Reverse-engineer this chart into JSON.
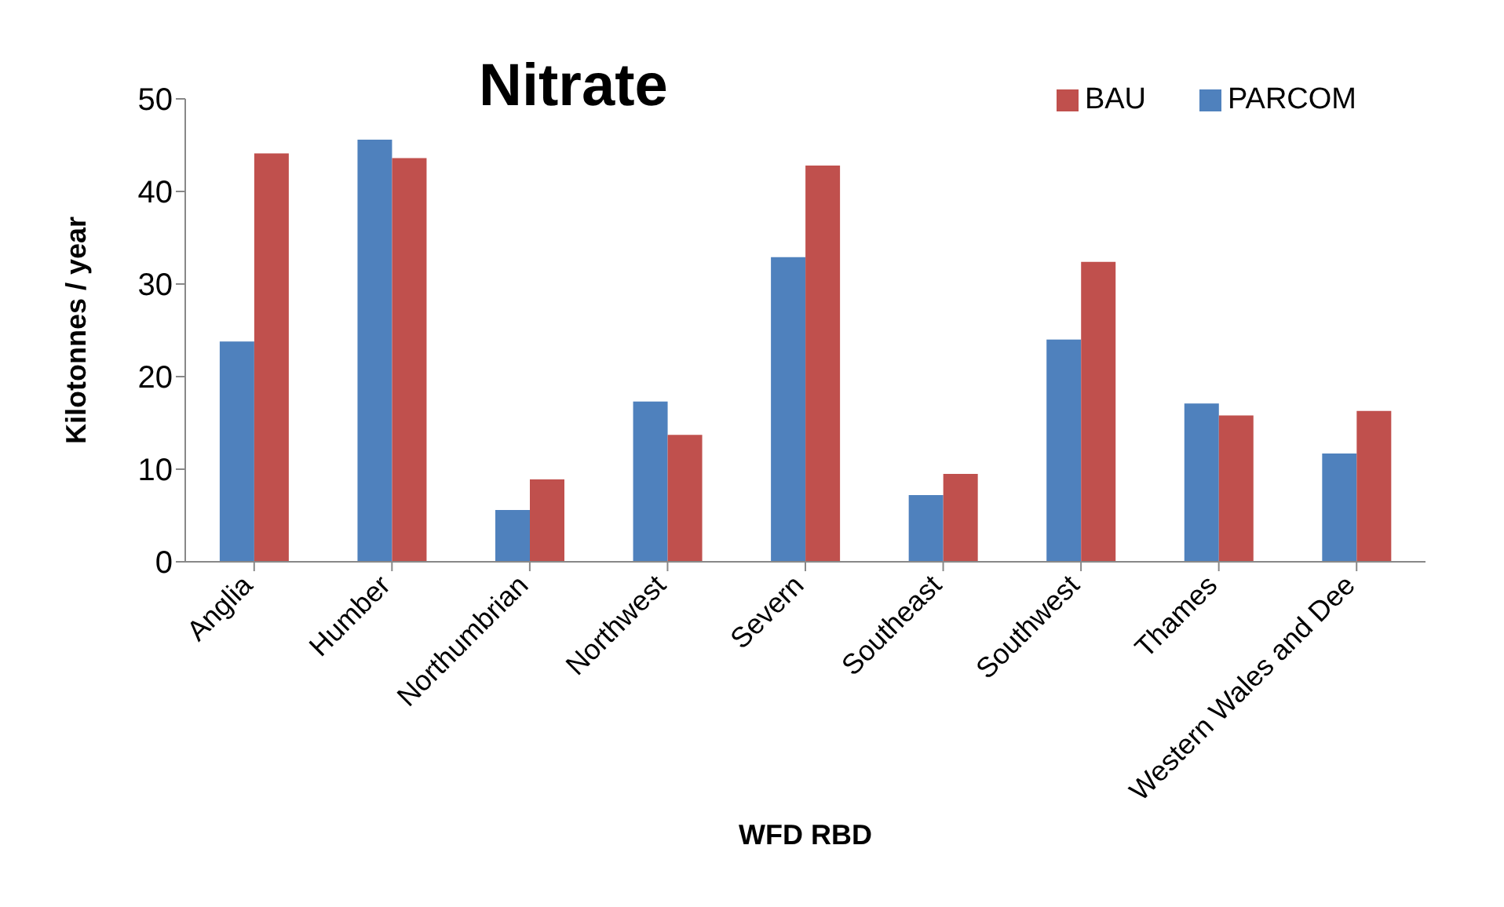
{
  "chart_data": {
    "type": "bar",
    "title": "Nitrate",
    "xlabel": "WFD RBD",
    "ylabel": "Kilotonnes / year",
    "categories": [
      "Anglia",
      "Humber",
      "Northumbrian",
      "Northwest",
      "Severn",
      "Southeast",
      "Southwest",
      "Thames",
      "Western Wales and Dee"
    ],
    "series": [
      {
        "name": "PARCOM",
        "color": "#4f81bd",
        "values": [
          23.8,
          45.6,
          5.6,
          17.3,
          32.9,
          7.2,
          24.0,
          17.1,
          11.7
        ]
      },
      {
        "name": "BAU",
        "color": "#c0504d",
        "values": [
          44.1,
          43.6,
          8.9,
          13.7,
          42.8,
          9.5,
          32.4,
          15.8,
          16.3
        ]
      }
    ],
    "ylim": [
      0,
      50
    ],
    "yticks": [
      0,
      10,
      20,
      30,
      40,
      50
    ],
    "grid": false,
    "legend": "top right"
  }
}
